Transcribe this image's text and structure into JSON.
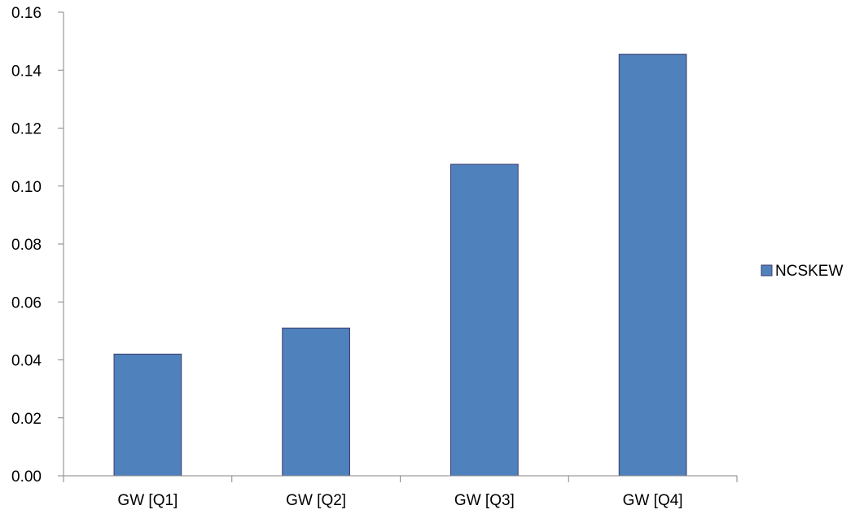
{
  "chart_data": {
    "type": "bar",
    "categories": [
      "GW [Q1]",
      "GW [Q2]",
      "GW [Q3]",
      "GW [Q4]"
    ],
    "series": [
      {
        "name": "NCSKEW",
        "values": [
          0.042,
          0.051,
          0.1075,
          0.1455
        ]
      }
    ],
    "ylim": [
      0,
      0.16
    ],
    "yticks": [
      "0.00",
      "0.02",
      "0.04",
      "0.06",
      "0.08",
      "0.10",
      "0.12",
      "0.14",
      "0.16"
    ],
    "grid": false,
    "legend_position": "right",
    "colors": {
      "bar_fill": "#4F81BD",
      "bar_stroke": "#3B3B6B",
      "axis": "#868686"
    }
  }
}
